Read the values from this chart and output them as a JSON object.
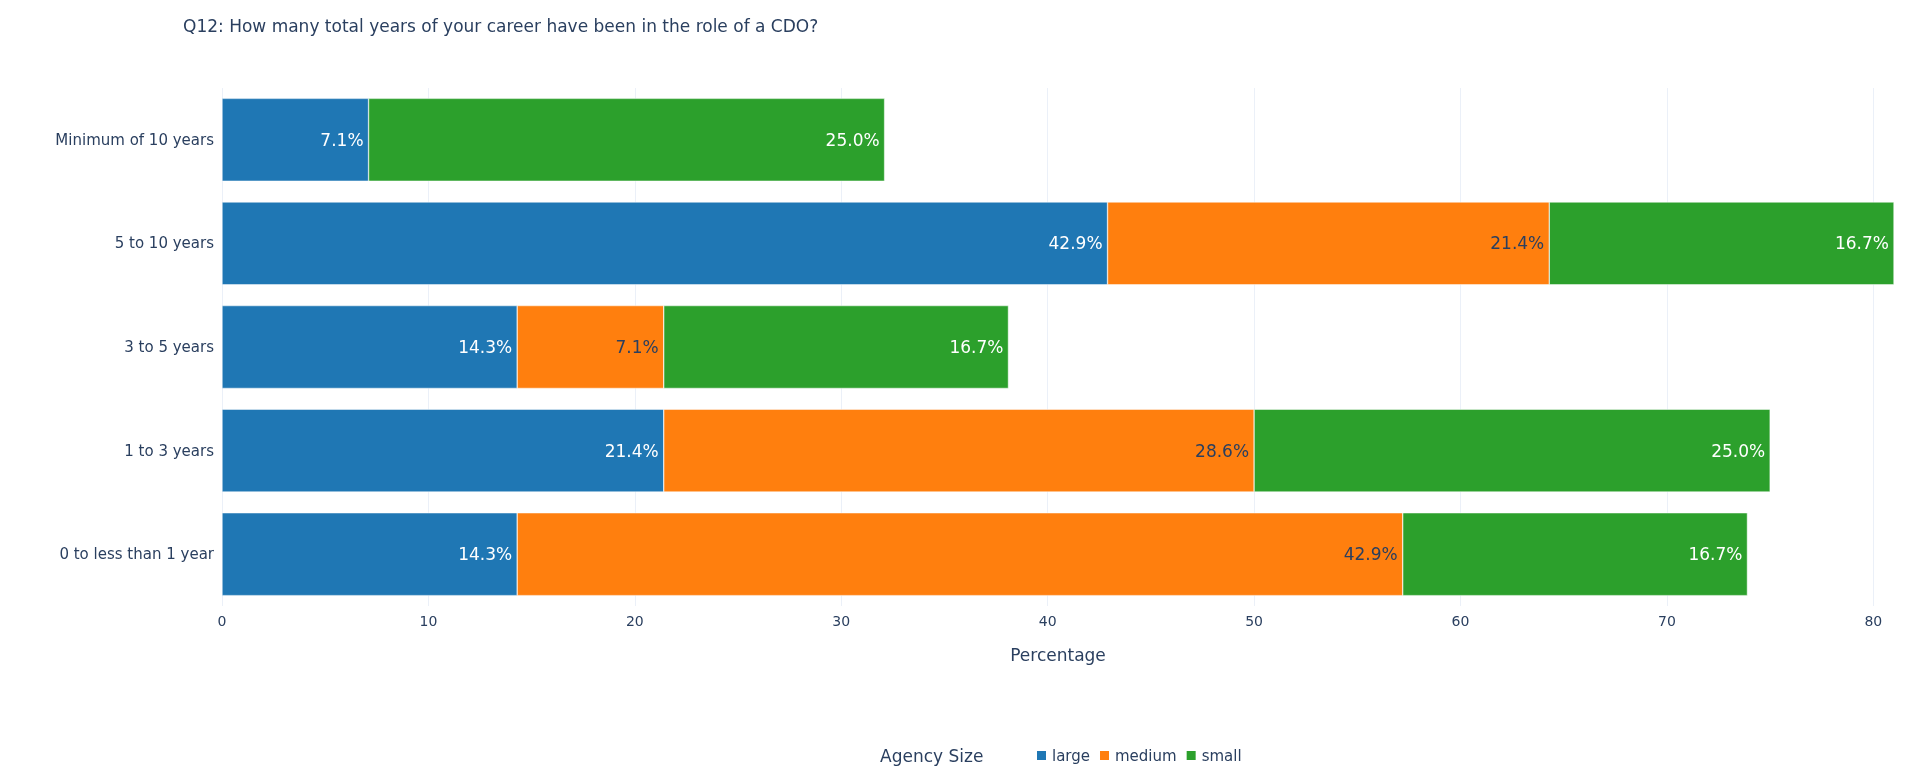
{
  "chart_data": {
    "type": "bar",
    "orientation": "horizontal",
    "stacked": true,
    "title": "Q12: How many total years of your career have been in the role of a CDO?",
    "xlabel": "Percentage",
    "legend_title": "Agency Size",
    "legend": "bottom",
    "grid": "x",
    "categories": [
      "Minimum of 10 years",
      "5 to 10 years",
      "3 to 5 years",
      "1 to 3 years",
      "0 to less than 1 year"
    ],
    "xlim": [
      0,
      81
    ],
    "xticks": [
      0,
      10,
      20,
      30,
      40,
      50,
      60,
      70,
      80
    ],
    "series": [
      {
        "name": "large",
        "color": "#1f77b4",
        "values": [
          7.1,
          42.9,
          14.3,
          21.4,
          14.3
        ],
        "value_labels": [
          "7.1%",
          "42.9%",
          "14.3%",
          "21.4%",
          "14.3%"
        ]
      },
      {
        "name": "medium",
        "color": "#ff7f0e",
        "values": [
          null,
          21.4,
          7.1,
          28.6,
          42.9
        ],
        "value_labels": [
          null,
          "21.4%",
          "7.1%",
          "28.6%",
          "42.9%"
        ]
      },
      {
        "name": "small",
        "color": "#2ca02c",
        "values": [
          25.0,
          16.7,
          16.7,
          25.0,
          16.7
        ],
        "value_labels": [
          "25.0%",
          "16.7%",
          "16.7%",
          "25.0%",
          "16.7%"
        ]
      }
    ]
  }
}
